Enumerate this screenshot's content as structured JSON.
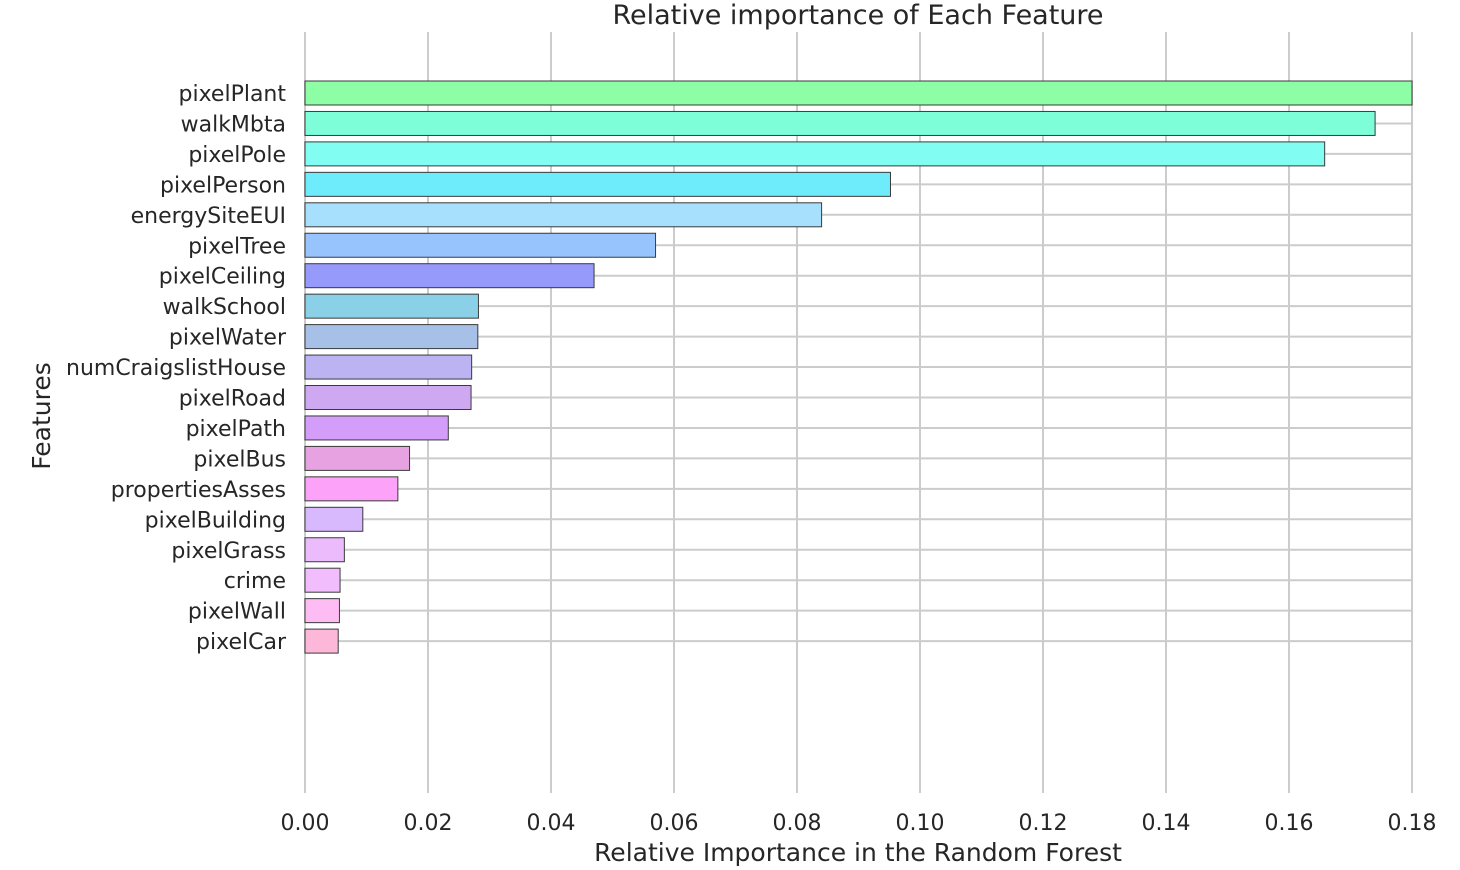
{
  "chart_data": {
    "type": "bar",
    "orientation": "horizontal",
    "title": "Relative importance of Each Feature",
    "xlabel": "Relative Importance in the Random Forest",
    "ylabel": "Features",
    "xlim": [
      0,
      0.18
    ],
    "x_ticks": [
      "0.00",
      "0.02",
      "0.04",
      "0.06",
      "0.08",
      "0.10",
      "0.12",
      "0.14",
      "0.16",
      "0.18"
    ],
    "grid": true,
    "categories": [
      "pixelPlant",
      "walkMbta",
      "pixelPole",
      "pixelPerson",
      "energySiteEUI",
      "pixelTree",
      "pixelCeiling",
      "walkSchool",
      "pixelWater",
      "numCraigslistHouse",
      "pixelRoad",
      "pixelPath",
      "pixelBus",
      "propertiesAsses",
      "pixelBuilding",
      "pixelGrass",
      "crime",
      "pixelWall",
      "pixelCar"
    ],
    "values": [
      0.18,
      0.174,
      0.1658,
      0.0952,
      0.084,
      0.057,
      0.047,
      0.0282,
      0.0281,
      0.0271,
      0.027,
      0.0233,
      0.017,
      0.0151,
      0.0094,
      0.0064,
      0.0057,
      0.0056,
      0.0054
    ],
    "colors": [
      "#8dfea5",
      "#7dfdd8",
      "#82fdf2",
      "#6fecfc",
      "#a7e0fd",
      "#97c4fd",
      "#969afb",
      "#8ad0e6",
      "#a6c0e8",
      "#bbb3f2",
      "#cfa8f2",
      "#d49df9",
      "#e7a2e1",
      "#fda2f9",
      "#d8b9fd",
      "#ecbbfc",
      "#f2bdfc",
      "#fdbcf4",
      "#fdb7d8"
    ]
  }
}
